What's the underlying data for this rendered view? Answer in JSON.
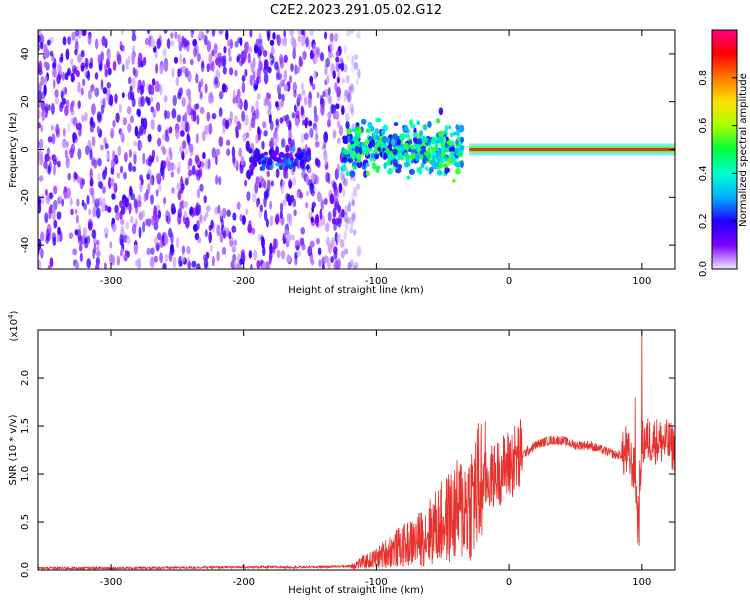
{
  "title": "C2E2.2023.291.05.02.G12",
  "colors": {
    "snr_line": "#e8302c",
    "centerline": "#e8302c",
    "noise_purple": "#6a00ff",
    "background": "#ffffff"
  },
  "chart_data": [
    {
      "type": "heatmap",
      "name": "spectrogram",
      "xlabel": "Height of straight line (km)",
      "ylabel": "Frequency (Hz)",
      "xlim": [
        -355,
        125
      ],
      "ylim": [
        -50,
        50
      ],
      "xticks": [
        -300,
        -200,
        -100,
        0,
        100
      ],
      "yticks": [
        -40,
        -20,
        0,
        20,
        40
      ],
      "colorbar": {
        "label": "Normalized spectral amplitude",
        "range": [
          0.0,
          1.0
        ],
        "ticks": [
          "0.0",
          "0.2",
          "0.4",
          "0.6",
          "0.8"
        ],
        "colormap": [
          "#f2e6ff",
          "#7a00ff",
          "#1f00ff",
          "#00b0ff",
          "#00ffd0",
          "#00ff3a",
          "#a8ff00",
          "#ffe000",
          "#ff7a00",
          "#ff0000",
          "#ff0080"
        ]
      },
      "regions": [
        {
          "label": "noise",
          "x_range": [
            -355,
            -125
          ],
          "f_range": [
            -50,
            50
          ],
          "amplitude": 0.15
        },
        {
          "label": "onset signal",
          "x_range": [
            -195,
            -150
          ],
          "f_center": -4,
          "f_spread": 5,
          "amplitude": 0.25
        },
        {
          "label": "broad signal",
          "x_range": [
            -125,
            -35
          ],
          "f_center": 0,
          "f_spread": 12,
          "amplitude": 0.45
        },
        {
          "label": "tone",
          "x_range": [
            -30,
            125
          ],
          "f_center": 0,
          "f_spread": 2,
          "amplitude": 0.95
        }
      ]
    },
    {
      "type": "line",
      "name": "snr",
      "xlabel": "Height of straight line (km)",
      "ylabel": "SNR (10 * v/v)",
      "y_multiplier": "(x10^4)",
      "xlim": [
        -355,
        125
      ],
      "ylim": [
        0,
        2.5
      ],
      "xticks": [
        -300,
        -200,
        -100,
        0,
        100
      ],
      "yticks": [
        "0.0",
        "0.5",
        "1.0",
        "1.5",
        "2.0"
      ],
      "envelope": {
        "x": [
          -355,
          -300,
          -200,
          -150,
          -120,
          -110,
          -100,
          -90,
          -80,
          -70,
          -60,
          -50,
          -40,
          -30,
          -20,
          -15,
          -10,
          0,
          10,
          20,
          30,
          40,
          50,
          60,
          70,
          80,
          90,
          95,
          97,
          100,
          103,
          110,
          120,
          125
        ],
        "y": [
          0.02,
          0.02,
          0.03,
          0.03,
          0.04,
          0.08,
          0.12,
          0.2,
          0.25,
          0.3,
          0.4,
          0.5,
          0.6,
          0.7,
          0.9,
          0.95,
          1.0,
          1.1,
          1.2,
          1.3,
          1.35,
          1.35,
          1.3,
          1.3,
          1.25,
          1.2,
          1.2,
          1.0,
          0.5,
          1.3,
          1.35,
          1.35,
          1.32,
          1.25
        ]
      },
      "peaks": [
        {
          "x": -18,
          "y": 1.55
        },
        {
          "x": 88,
          "y": 1.5
        },
        {
          "x": 95,
          "y": 1.8
        },
        {
          "x": 100,
          "y": 2.6
        },
        {
          "x": 98,
          "y": 0.25
        }
      ]
    }
  ]
}
